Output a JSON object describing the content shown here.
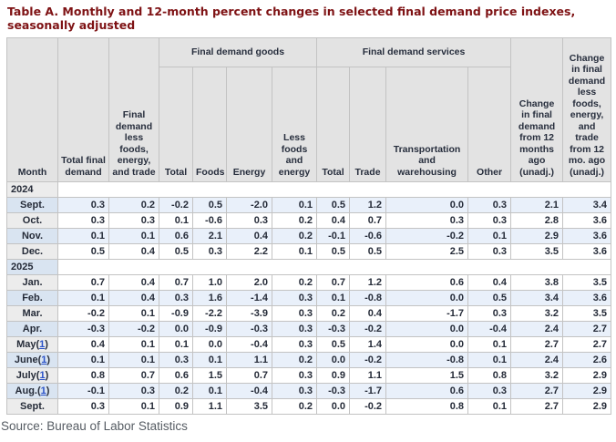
{
  "title": "Table A. Monthly and 12-month percent changes in selected final demand price indexes, seasonally adjusted",
  "source": "Source: Bureau of Labor Statistics",
  "colors": {
    "title_maroon": "#7e1214",
    "header_gray": "#e3e3e3",
    "border_gray": "#c3c3c3",
    "alt_row_blue": "#e9f0fa",
    "stub_blue": "#d9e4f1",
    "stub_gray": "#ececec",
    "footnote_link_blue": "#2a52c8",
    "text_dark": "#252b38",
    "source_gray": "#565c63"
  },
  "table": {
    "headers": {
      "month": "Month",
      "total_final_demand": "Total final demand",
      "fd_less_fet": "Final demand less foods, energy, and trade",
      "goods_group": "Final demand goods",
      "goods_total": "Total",
      "goods_foods": "Foods",
      "goods_energy": "Energy",
      "goods_less_fe": "Less foods and energy",
      "services_group": "Final demand services",
      "services_total": "Total",
      "services_trade": "Trade",
      "services_transport": "Transportation and warehousing",
      "services_other": "Other",
      "chg_12mo": "Change in final demand from 12 months ago (unadj.)",
      "chg_12mo_less": "Change in final demand less foods, energy, and trade from 12 mo. ago (unadj.)"
    },
    "groups": [
      {
        "year": "2024",
        "rows": [
          {
            "label": "Sept.",
            "footnote": null,
            "values": [
              "0.3",
              "0.2",
              "-0.2",
              "0.5",
              "-2.0",
              "0.1",
              "0.5",
              "1.2",
              "0.0",
              "0.3",
              "2.1",
              "3.4"
            ]
          },
          {
            "label": "Oct.",
            "footnote": null,
            "values": [
              "0.3",
              "0.3",
              "0.1",
              "-0.6",
              "0.3",
              "0.2",
              "0.4",
              "0.7",
              "0.3",
              "0.3",
              "2.8",
              "3.6"
            ]
          },
          {
            "label": "Nov.",
            "footnote": null,
            "values": [
              "0.1",
              "0.1",
              "0.6",
              "2.1",
              "0.4",
              "0.2",
              "-0.1",
              "-0.6",
              "-0.2",
              "0.1",
              "2.9",
              "3.6"
            ]
          },
          {
            "label": "Dec.",
            "footnote": null,
            "values": [
              "0.5",
              "0.4",
              "0.5",
              "0.3",
              "2.2",
              "0.1",
              "0.5",
              "0.5",
              "2.5",
              "0.3",
              "3.5",
              "3.6"
            ]
          }
        ]
      },
      {
        "year": "2025",
        "rows": [
          {
            "label": "Jan.",
            "footnote": null,
            "values": [
              "0.7",
              "0.4",
              "0.7",
              "1.0",
              "2.0",
              "0.2",
              "0.7",
              "1.2",
              "0.6",
              "0.4",
              "3.8",
              "3.5"
            ]
          },
          {
            "label": "Feb.",
            "footnote": null,
            "values": [
              "0.1",
              "0.4",
              "0.3",
              "1.6",
              "-1.4",
              "0.3",
              "0.1",
              "-0.8",
              "0.0",
              "0.5",
              "3.4",
              "3.6"
            ]
          },
          {
            "label": "Mar.",
            "footnote": null,
            "values": [
              "-0.2",
              "0.1",
              "-0.9",
              "-2.2",
              "-3.9",
              "0.3",
              "0.2",
              "0.4",
              "-1.7",
              "0.3",
              "3.2",
              "3.5"
            ]
          },
          {
            "label": "Apr.",
            "footnote": null,
            "values": [
              "-0.3",
              "-0.2",
              "0.0",
              "-0.9",
              "-0.3",
              "0.3",
              "-0.3",
              "-0.2",
              "0.0",
              "-0.4",
              "2.4",
              "2.7"
            ]
          },
          {
            "label": "May",
            "footnote": "1",
            "values": [
              "0.4",
              "0.1",
              "0.1",
              "0.0",
              "-0.4",
              "0.3",
              "0.5",
              "1.4",
              "0.0",
              "0.1",
              "2.7",
              "2.7"
            ]
          },
          {
            "label": "June",
            "footnote": "1",
            "values": [
              "0.1",
              "0.1",
              "0.3",
              "0.1",
              "1.1",
              "0.2",
              "0.0",
              "-0.2",
              "-0.8",
              "0.1",
              "2.4",
              "2.6"
            ]
          },
          {
            "label": "July",
            "footnote": "1",
            "values": [
              "0.8",
              "0.7",
              "0.6",
              "1.5",
              "0.7",
              "0.3",
              "0.9",
              "1.1",
              "1.5",
              "0.8",
              "3.2",
              "2.9"
            ]
          },
          {
            "label": "Aug.",
            "footnote": "1",
            "values": [
              "-0.1",
              "0.3",
              "0.2",
              "0.1",
              "-0.4",
              "0.3",
              "-0.3",
              "-1.7",
              "0.6",
              "0.3",
              "2.7",
              "2.9"
            ]
          },
          {
            "label": "Sept.",
            "footnote": null,
            "values": [
              "0.3",
              "0.1",
              "0.9",
              "1.1",
              "3.5",
              "0.2",
              "0.0",
              "-0.2",
              "0.8",
              "0.1",
              "2.7",
              "2.9"
            ]
          }
        ]
      }
    ]
  }
}
